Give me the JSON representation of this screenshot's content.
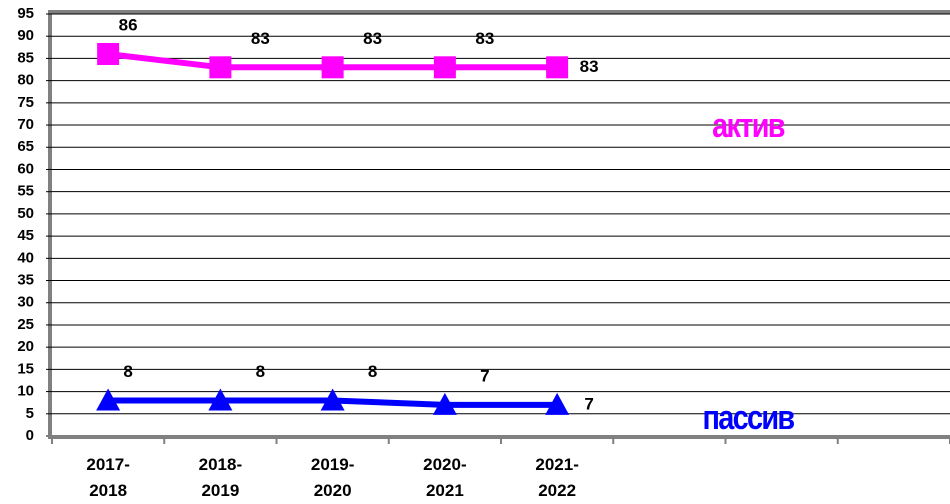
{
  "chart_data": {
    "type": "line",
    "categories": [
      "2017-2018",
      "2018-2019",
      "2019-2020",
      "2020-2021",
      "2021-2022",
      null,
      null,
      null
    ],
    "series": [
      {
        "name": "актив",
        "color": "#ff00ff",
        "marker": "square",
        "values": [
          86,
          83,
          83,
          83,
          83,
          null,
          null,
          null
        ]
      },
      {
        "name": "пассив",
        "color": "#0000ff",
        "marker": "triangle",
        "values": [
          8,
          8,
          8,
          7,
          7,
          null,
          null,
          null
        ]
      }
    ],
    "ylim": [
      0,
      95
    ],
    "yticks": [
      0,
      5,
      10,
      15,
      20,
      25,
      30,
      35,
      40,
      45,
      50,
      55,
      60,
      65,
      70,
      75,
      80,
      85,
      90,
      95
    ],
    "grid": true
  }
}
